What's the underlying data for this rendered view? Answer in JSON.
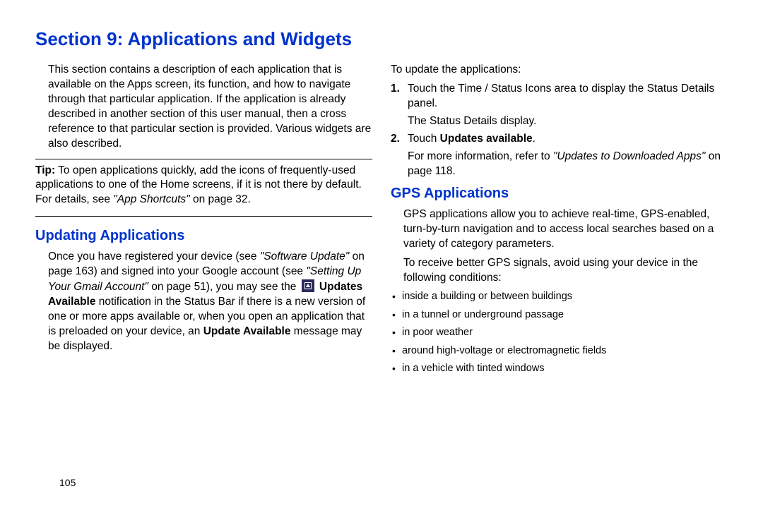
{
  "colors": {
    "heading": "#0033cc",
    "text": "#000000",
    "background": "#ffffff",
    "icon_bg": "#2a2a5a"
  },
  "fonts": {
    "heading_size_pt": 26,
    "subheading_size_pt": 20,
    "body_size_pt": 15.5,
    "small_size_pt": 14.5
  },
  "section_title": "Section 9: Applications and Widgets",
  "page_number": "105",
  "left": {
    "intro": "This section contains a description of each application that is available on the Apps screen, its function, and how to navigate through that particular application. If the application is already described in another section of this user manual, then a cross reference to that particular section is provided. Various widgets are also described.",
    "tip_label": "Tip:",
    "tip_text_1": " To open applications quickly, add the icons of frequently-used applications to one of the Home screens, if it is not there by default. For details, see ",
    "tip_ref": "\"App Shortcuts\"",
    "tip_text_2": " on page 32.",
    "subheading": "Updating Applications",
    "para1_a": "Once you have registered your device (see ",
    "para1_ref1": "\"Software Update\"",
    "para1_b": " on page 163) and signed into your Google account (see ",
    "para1_ref2": "\"Setting Up Your Gmail Account\"",
    "para1_c": " on page 51), you may see the ",
    "para1_bold1": " Updates Available",
    "para1_d": " notification in the Status Bar if there is a new version of one or more apps available or, when you open an application that is preloaded on your device, an ",
    "para1_bold2": "Update Available",
    "para1_e": " message may be displayed."
  },
  "right": {
    "intro": "To update the applications:",
    "step1_num": "1.",
    "step1_text": "Touch the Time / Status Icons area to display the Status Details panel.",
    "step1_sub": "The Status Details display.",
    "step2_num": "2.",
    "step2_a": "Touch ",
    "step2_bold": "Updates available",
    "step2_b": ".",
    "step2_sub_a": "For more information, refer to ",
    "step2_sub_ref": "\"Updates to Downloaded Apps\"",
    "step2_sub_b": " on page 118.",
    "subheading": "GPS Applications",
    "gps_para1": "GPS applications allow you to achieve real-time, GPS-enabled, turn-by-turn navigation and to access local searches based on a variety of category parameters.",
    "gps_para2": "To receive better GPS signals, avoid using your device in the following conditions:",
    "bullets": [
      "inside a building or between buildings",
      "in a tunnel or underground passage",
      "in poor weather",
      "around high-voltage or electromagnetic fields",
      "in a vehicle with tinted windows"
    ]
  }
}
